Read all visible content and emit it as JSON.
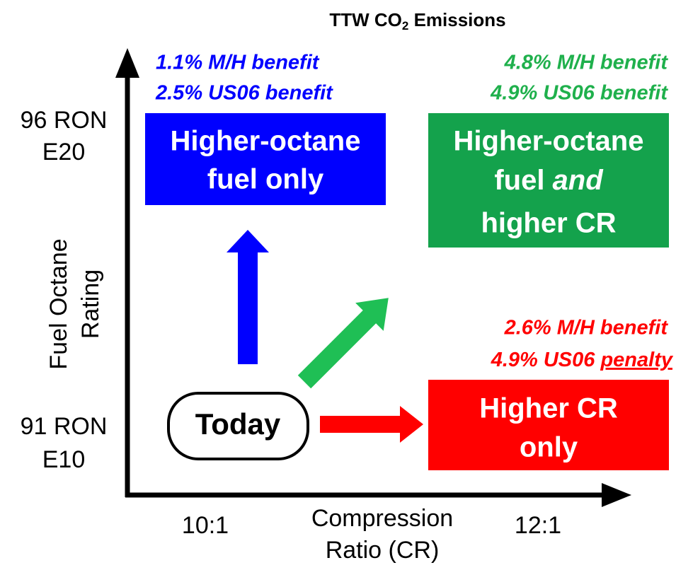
{
  "title": {
    "parts": [
      "TTW CO",
      "2",
      " Emissions"
    ]
  },
  "y_axis": {
    "label": [
      "Fuel Octane",
      "Rating"
    ],
    "ticks": [
      {
        "lines": [
          "96 RON",
          "E20"
        ]
      },
      {
        "lines": [
          "91 RON",
          "E10"
        ]
      }
    ]
  },
  "x_axis": {
    "label": [
      "Compression",
      "Ratio (CR)"
    ],
    "ticks": [
      "10:1",
      "12:1"
    ]
  },
  "nodes": {
    "today": {
      "label": "Today"
    },
    "fuel_only": {
      "lines": [
        "Higher-octane",
        "fuel only"
      ]
    },
    "both": {
      "line1": "Higher-octane",
      "line2": [
        "fuel ",
        "and"
      ],
      "line3": "higher CR"
    },
    "cr_only": {
      "lines": [
        "Higher CR",
        "only"
      ]
    }
  },
  "annotations": {
    "fuel_only": [
      "1.1% M/H benefit",
      "2.5% US06 benefit"
    ],
    "both": [
      "4.8% M/H benefit",
      "4.9% US06 benefit"
    ],
    "cr_only": {
      "line1": "2.6% M/H benefit",
      "line2": [
        "4.9% US06 ",
        "penalty"
      ]
    }
  }
}
